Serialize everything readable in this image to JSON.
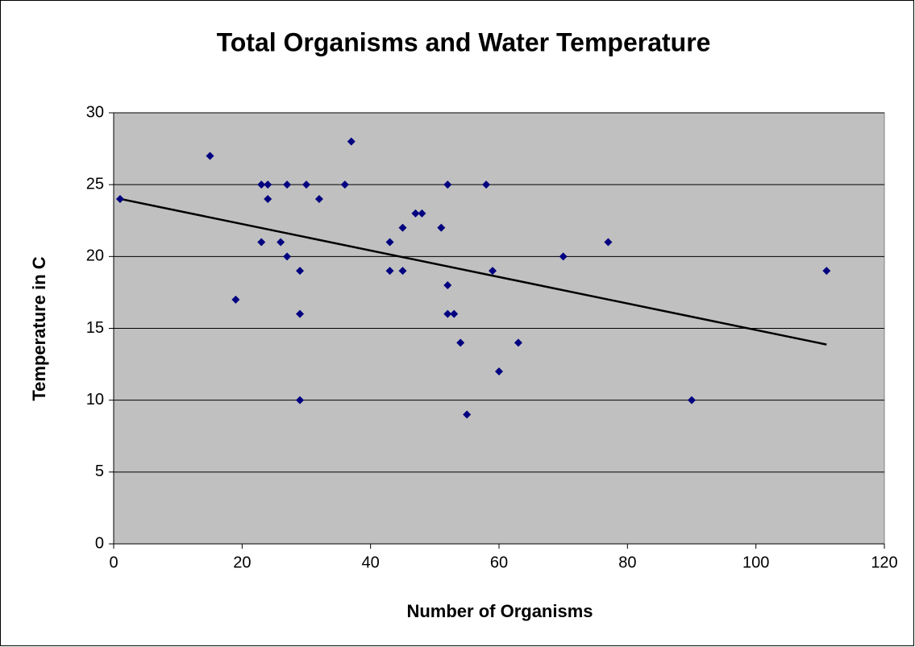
{
  "chart_data": {
    "type": "scatter",
    "title": "Total Organisms and Water Temperature",
    "xlabel": "Number of Organisms",
    "ylabel": "Temperature in C",
    "x": [
      1,
      15,
      19,
      23,
      24,
      24,
      23,
      26,
      27,
      27,
      29,
      29,
      29,
      30,
      32,
      36,
      37,
      43,
      43,
      45,
      45,
      47,
      48,
      51,
      52,
      52,
      52,
      53,
      54,
      55,
      58,
      59,
      60,
      63,
      70,
      77,
      90,
      111
    ],
    "series": [
      {
        "color": "#000080",
        "values": [
          24,
          27,
          17,
          25,
          25,
          24,
          21,
          21,
          25,
          20,
          19,
          16,
          10,
          25,
          24,
          25,
          28,
          21,
          19,
          22,
          19,
          23,
          23,
          22,
          25,
          18,
          16,
          16,
          14,
          9,
          25,
          19,
          12,
          14,
          20,
          21,
          10,
          19
        ]
      }
    ],
    "trendline": true,
    "xlim": [
      0,
      120
    ],
    "xticks": [
      0,
      20,
      40,
      60,
      80,
      100,
      120
    ],
    "ylim": [
      0,
      30
    ],
    "yticks": [
      0,
      5,
      10,
      15,
      20,
      25,
      30
    ],
    "grid": true
  }
}
